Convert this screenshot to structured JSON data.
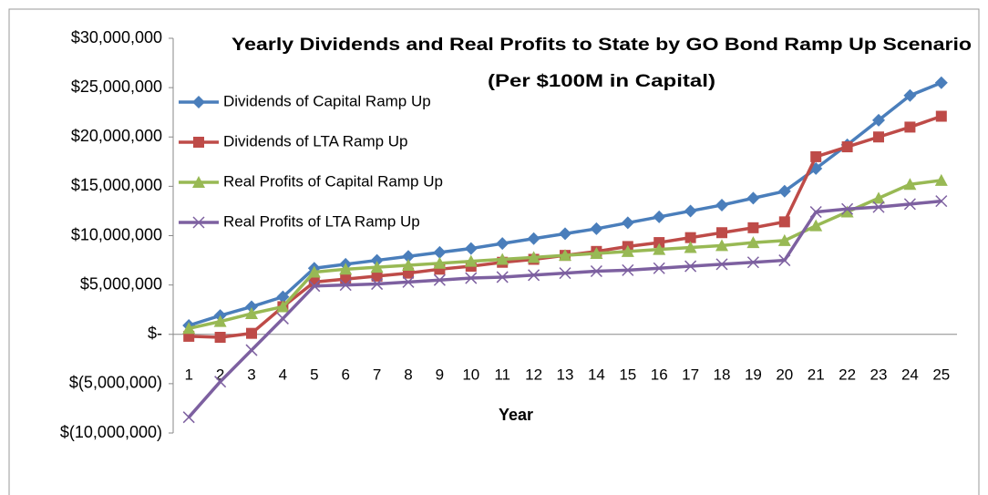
{
  "chart_data": {
    "type": "line",
    "title": "Yearly Dividends and Real Profits to State by GO Bond Ramp Up Scenario",
    "subtitle": "(Per $100M in Capital)",
    "x_label": "Year",
    "categories": [
      "1",
      "2",
      "3",
      "4",
      "5",
      "6",
      "7",
      "8",
      "9",
      "10",
      "11",
      "12",
      "13",
      "14",
      "15",
      "16",
      "17",
      "18",
      "19",
      "20",
      "21",
      "22",
      "23",
      "24",
      "25"
    ],
    "ylim": [
      -10000000,
      30000000
    ],
    "yticks": [
      {
        "value": -10000000,
        "label": "$(10,000,000)"
      },
      {
        "value": -5000000,
        "label": "$(5,000,000)"
      },
      {
        "value": 0,
        "label": "$-"
      },
      {
        "value": 5000000,
        "label": "$5,000,000"
      },
      {
        "value": 10000000,
        "label": "$10,000,000"
      },
      {
        "value": 15000000,
        "label": "$15,000,000"
      },
      {
        "value": 20000000,
        "label": "$20,000,000"
      },
      {
        "value": 25000000,
        "label": "$25,000,000"
      },
      {
        "value": 30000000,
        "label": "$30,000,000"
      }
    ],
    "grid": false,
    "legend": "upper left",
    "series": [
      {
        "name": "Dividends of Capital Ramp Up",
        "color": "#4a7ebb",
        "marker": "diamond",
        "values": [
          900000,
          1900000,
          2800000,
          3800000,
          6700000,
          7100000,
          7500000,
          7900000,
          8300000,
          8700000,
          9200000,
          9700000,
          10200000,
          10700000,
          11300000,
          11900000,
          12500000,
          13100000,
          13800000,
          14500000,
          16800000,
          19200000,
          21700000,
          24200000,
          25500000
        ]
      },
      {
        "name": "Dividends of LTA Ramp Up",
        "color": "#be4b48",
        "marker": "square",
        "values": [
          -200000,
          -300000,
          100000,
          2800000,
          5300000,
          5600000,
          5900000,
          6200000,
          6600000,
          6900000,
          7300000,
          7600000,
          8000000,
          8400000,
          8900000,
          9300000,
          9800000,
          10300000,
          10800000,
          11400000,
          18000000,
          19000000,
          20000000,
          21000000,
          22100000
        ]
      },
      {
        "name": "Real Profits of Capital Ramp Up",
        "color": "#98b954",
        "marker": "triangle",
        "values": [
          600000,
          1300000,
          2100000,
          2800000,
          6300000,
          6600000,
          6800000,
          7000000,
          7200000,
          7400000,
          7600000,
          7800000,
          8000000,
          8200000,
          8400000,
          8600000,
          8800000,
          9000000,
          9300000,
          9500000,
          11000000,
          12400000,
          13800000,
          15200000,
          15600000
        ]
      },
      {
        "name": "Real Profits of LTA Ramp Up",
        "color": "#7d60a0",
        "marker": "x",
        "values": [
          -8400000,
          -4800000,
          -1600000,
          1600000,
          4900000,
          5000000,
          5100000,
          5300000,
          5500000,
          5700000,
          5800000,
          6000000,
          6200000,
          6400000,
          6500000,
          6700000,
          6900000,
          7100000,
          7300000,
          7500000,
          12400000,
          12700000,
          12900000,
          13200000,
          13500000
        ]
      }
    ]
  }
}
